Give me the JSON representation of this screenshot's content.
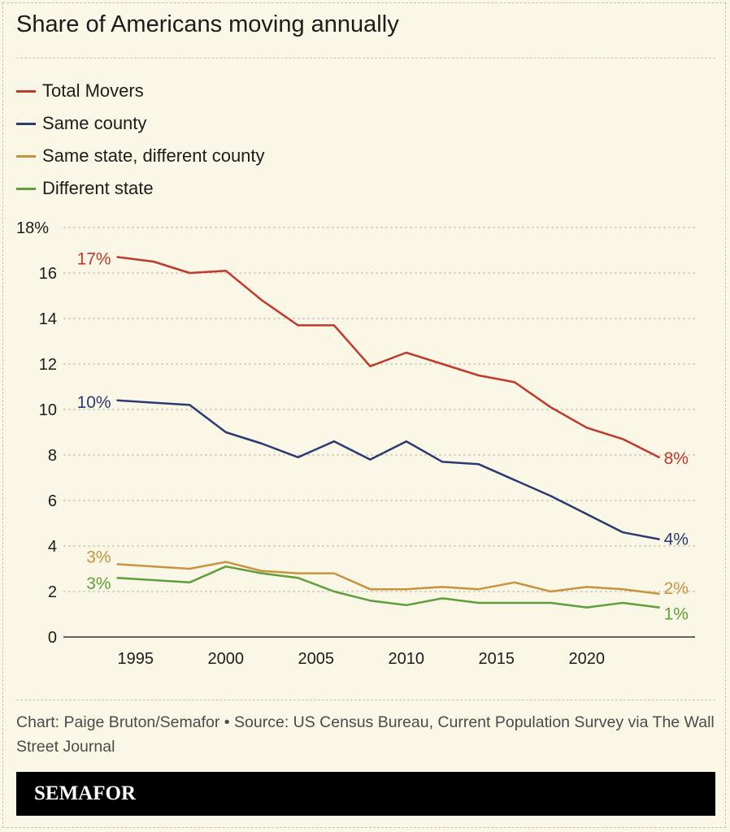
{
  "page": {
    "title": "Share of Americans moving annually",
    "credit": "Chart: Paige Bruton/Semafor • Source: US Census Bureau, Current Population Survey via The Wall Street Journal",
    "brand": "SEMAFOR"
  },
  "chart_data": {
    "type": "line",
    "title": "Share of Americans moving annually",
    "xlabel": "",
    "ylabel": "",
    "xlim": [
      1991,
      2026
    ],
    "ylim": [
      0,
      18
    ],
    "y_ticks": [
      "0",
      "2",
      "4",
      "6",
      "8",
      "10",
      "12",
      "14",
      "16",
      "18%"
    ],
    "x_ticks": [
      "1995",
      "2000",
      "2005",
      "2010",
      "2015",
      "2020"
    ],
    "grid": true,
    "legend_position": "top-left",
    "series": [
      {
        "name": "Total Movers",
        "color": "#c0392b",
        "x": [
          1994,
          1996,
          1998,
          2000,
          2002,
          2004,
          2006,
          2008,
          2010,
          2012,
          2014,
          2016,
          2018,
          2020,
          2022,
          2024
        ],
        "values": [
          16.7,
          16.5,
          16.0,
          16.1,
          14.8,
          13.7,
          13.7,
          11.9,
          12.5,
          12.0,
          11.5,
          11.2,
          10.1,
          9.2,
          8.7,
          7.9
        ],
        "start_label": "17%",
        "end_label": "8%"
      },
      {
        "name": "Same county",
        "color": "#2b3a73",
        "x": [
          1994,
          1996,
          1998,
          2000,
          2002,
          2004,
          2006,
          2008,
          2010,
          2012,
          2014,
          2016,
          2018,
          2020,
          2022,
          2024
        ],
        "values": [
          10.4,
          10.3,
          10.2,
          9.0,
          8.5,
          7.9,
          8.6,
          7.8,
          8.6,
          7.7,
          7.6,
          6.9,
          6.2,
          5.4,
          4.6,
          4.3
        ],
        "start_label": "10%",
        "end_label": "4%"
      },
      {
        "name": "Same state, different county",
        "color": "#c9923e",
        "x": [
          1994,
          1996,
          1998,
          2000,
          2002,
          2004,
          2006,
          2008,
          2010,
          2012,
          2014,
          2016,
          2018,
          2020,
          2022,
          2024
        ],
        "values": [
          3.2,
          3.1,
          3.0,
          3.3,
          2.9,
          2.8,
          2.8,
          2.1,
          2.1,
          2.2,
          2.1,
          2.4,
          2.0,
          2.2,
          2.1,
          1.9
        ],
        "start_label": "3%",
        "end_label": "2%"
      },
      {
        "name": "Different state",
        "color": "#5f9e3a",
        "x": [
          1994,
          1996,
          1998,
          2000,
          2002,
          2004,
          2006,
          2008,
          2010,
          2012,
          2014,
          2016,
          2018,
          2020,
          2022,
          2024
        ],
        "values": [
          2.6,
          2.5,
          2.4,
          3.1,
          2.8,
          2.6,
          2.0,
          1.6,
          1.4,
          1.7,
          1.5,
          1.5,
          1.5,
          1.3,
          1.5,
          1.3
        ],
        "start_label": "3%",
        "end_label": "1%"
      }
    ]
  }
}
